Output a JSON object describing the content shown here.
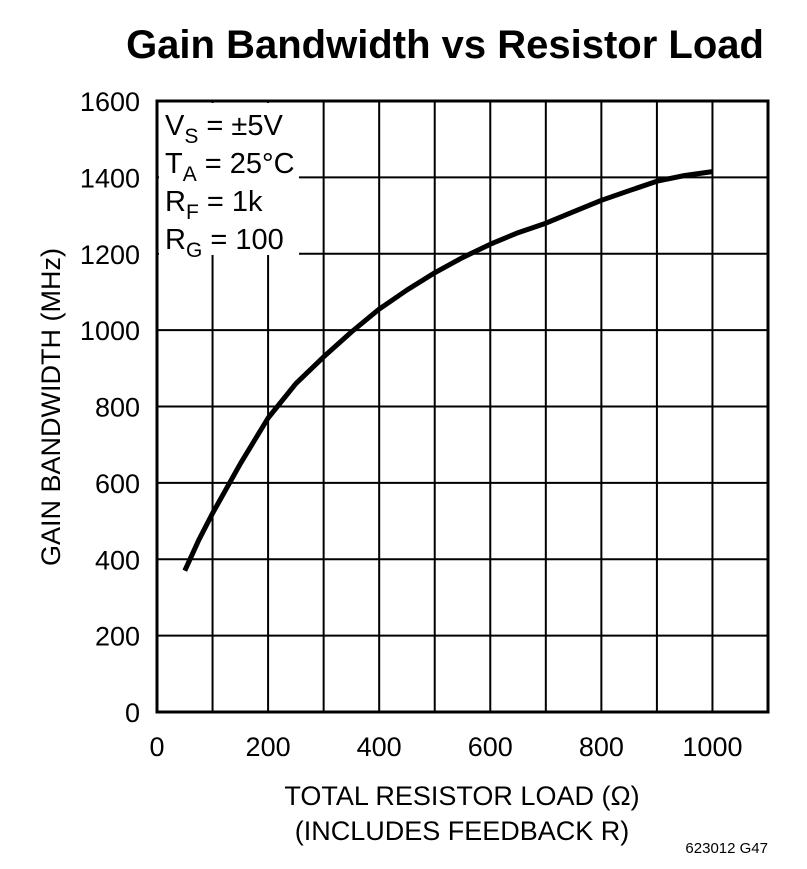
{
  "chart_data": {
    "type": "line",
    "title": "Gain Bandwidth vs Resistor Load",
    "xlabel": "TOTAL RESISTOR LOAD (Ω)",
    "xlabel2": "(INCLUDES FEEDBACK R)",
    "ylabel": "GAIN BANDWIDTH (MHz)",
    "xlim": [
      0,
      1100
    ],
    "ylim": [
      0,
      1600
    ],
    "xticks": [
      0,
      200,
      400,
      600,
      800,
      1000
    ],
    "yticks": [
      0,
      200,
      400,
      600,
      800,
      1000,
      1200,
      1400,
      1600
    ],
    "x_grid_step": 100,
    "y_grid_step": 200,
    "grid": true,
    "legend_placement": "top-left",
    "conditions": [
      {
        "main": "V",
        "sub": "S",
        "rest": " = ±5V"
      },
      {
        "main": "T",
        "sub": "A",
        "rest": " = 25°C"
      },
      {
        "main": "R",
        "sub": "F",
        "rest": " = 1k"
      },
      {
        "main": "R",
        "sub": "G",
        "rest": " = 100"
      }
    ],
    "series": [
      {
        "name": "Gain Bandwidth",
        "x": [
          50,
          75,
          100,
          150,
          200,
          250,
          300,
          350,
          400,
          450,
          500,
          550,
          600,
          650,
          700,
          750,
          800,
          850,
          900,
          950,
          1000
        ],
        "y": [
          370,
          450,
          520,
          650,
          770,
          860,
          930,
          995,
          1055,
          1105,
          1150,
          1190,
          1225,
          1255,
          1280,
          1310,
          1340,
          1365,
          1390,
          1405,
          1415
        ]
      }
    ],
    "figure_code": "623012 G47"
  }
}
